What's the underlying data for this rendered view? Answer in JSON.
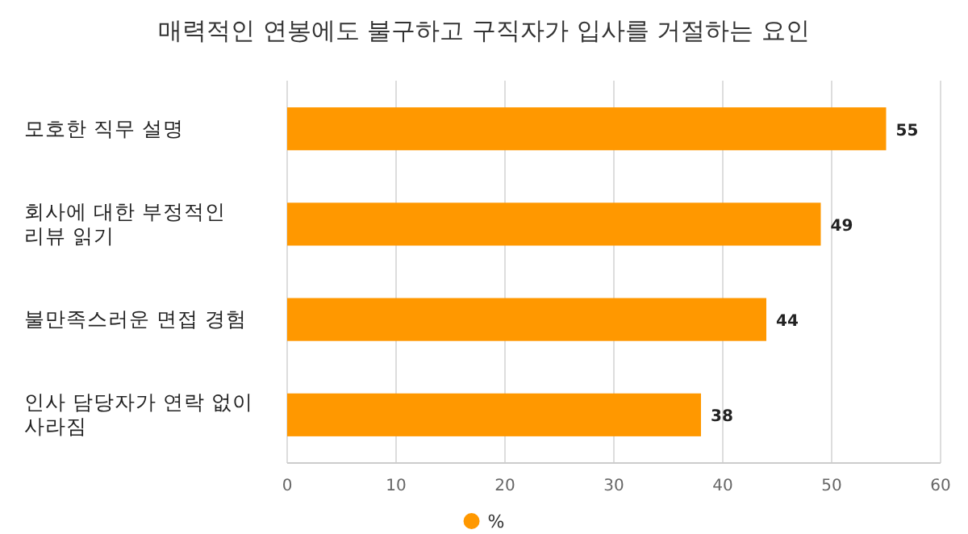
{
  "chart_data": {
    "type": "bar",
    "orientation": "horizontal",
    "title": "매력적인 연봉에도 불구하고 구직자가 입사를 거절하는 요인",
    "categories": [
      "모호한 직무 설명",
      "회사에 대한 부정적인 리뷰 읽기",
      "불만족스러운 면접 경험",
      "인사 담당자가 연락 없이 사라짐"
    ],
    "series": [
      {
        "name": "%",
        "color": "#ff9800",
        "values": [
          55,
          49,
          44,
          38
        ]
      }
    ],
    "xlim": [
      0,
      60
    ],
    "xticks": [
      0,
      10,
      20,
      30,
      40,
      50,
      60
    ],
    "grid": "x",
    "legend": "bottom",
    "data_labels": true
  }
}
